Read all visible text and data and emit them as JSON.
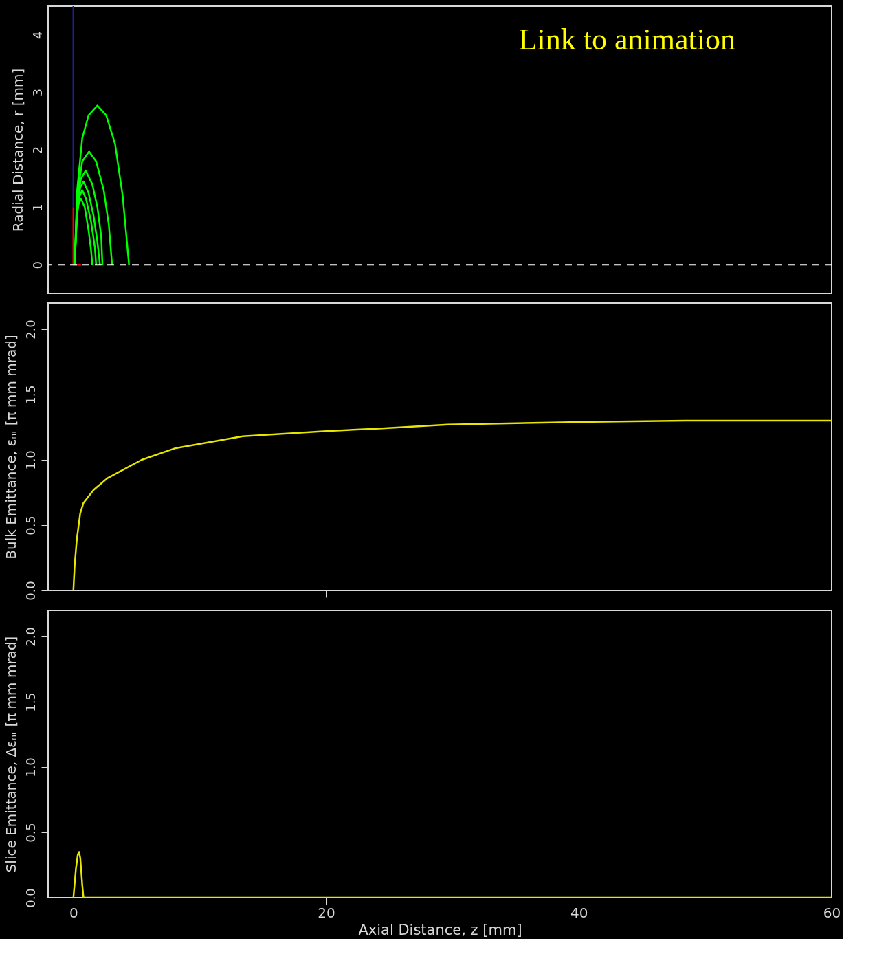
{
  "chart_data": [
    {
      "type": "line",
      "ylabel": "Radial Distance, r [mm]",
      "xlim": [
        -2,
        60
      ],
      "xticks": [
        0,
        20,
        40,
        60
      ],
      "ylim": [
        -0.5,
        4.5
      ],
      "yticks": [
        0,
        1,
        2,
        3,
        4
      ],
      "tick_labels": "y",
      "grid": false,
      "annotations": [
        "Link to animation"
      ],
      "ref_lines": [
        {
          "axis": "y",
          "value": 0,
          "color": "#ffffff",
          "line_style": "dashed"
        }
      ],
      "series": [
        {
          "color": "#202090",
          "x": [
            0,
            0
          ],
          "values": [
            4.5,
            1
          ]
        },
        {
          "color": "#ff0000",
          "x": [
            0,
            0,
            0.6
          ],
          "values": [
            1,
            0,
            0
          ]
        },
        {
          "color": "#00ff00",
          "x": [
            0.1,
            0.3,
            0.7,
            1.2,
            1.9,
            2.6,
            3.3,
            3.9,
            4.4
          ],
          "values": [
            0,
            1.3,
            2.2,
            2.6,
            2.77,
            2.6,
            2.1,
            1.2,
            0
          ]
        },
        {
          "color": "#00ff00",
          "x": [
            0.1,
            0.3,
            0.7,
            1.24,
            1.8,
            2.4,
            2.8,
            3.06
          ],
          "values": [
            0,
            1.2,
            1.8,
            1.97,
            1.8,
            1.3,
            0.7,
            0
          ]
        },
        {
          "color": "#00ff00",
          "x": [
            0.1,
            0.3,
            0.6,
            0.97,
            1.5,
            1.9,
            2.2,
            2.3
          ],
          "values": [
            0,
            1.1,
            1.5,
            1.64,
            1.4,
            1.0,
            0.5,
            0
          ]
        },
        {
          "color": "#00ff00",
          "x": [
            0.1,
            0.3,
            0.55,
            0.81,
            1.2,
            1.6,
            1.9,
            2.1
          ],
          "values": [
            0,
            1.0,
            1.35,
            1.45,
            1.25,
            0.85,
            0.4,
            0
          ]
        },
        {
          "color": "#00ff00",
          "x": [
            0.1,
            0.3,
            0.5,
            0.7,
            1.0,
            1.4,
            1.7,
            1.8
          ],
          "values": [
            0,
            0.9,
            1.2,
            1.3,
            1.15,
            0.75,
            0.3,
            0
          ]
        },
        {
          "color": "#00ff00",
          "x": [
            0.1,
            0.25,
            0.4,
            0.6,
            0.9,
            1.2,
            1.4,
            1.5
          ],
          "values": [
            0,
            0.8,
            1.05,
            1.15,
            1.0,
            0.6,
            0.25,
            0
          ]
        }
      ]
    },
    {
      "type": "line",
      "ylabel": "Bulk Emittance, εₙᵣ [π mm mrad]",
      "xlim": [
        -2,
        60
      ],
      "xticks": [
        0,
        20,
        40,
        60
      ],
      "ylim": [
        0,
        2.2
      ],
      "yticks": [
        {
          "value": 0,
          "label": "0.0"
        },
        {
          "value": 0.5,
          "label": "0.5"
        },
        {
          "value": 1,
          "label": "1.0"
        },
        {
          "value": 1.5,
          "label": "1.5"
        },
        {
          "value": 2,
          "label": "2.0"
        }
      ],
      "tick_labels": "y",
      "grid": false,
      "series": [
        {
          "color": "#e6e600",
          "x": [
            0,
            0.1,
            0.27,
            0.54,
            0.8,
            1.6,
            2.7,
            5.4,
            8.1,
            13.4,
            20,
            24.2,
            29.6,
            40,
            48.4,
            60
          ],
          "values": [
            0,
            0.19,
            0.39,
            0.59,
            0.67,
            0.77,
            0.86,
            1.0,
            1.09,
            1.18,
            1.22,
            1.24,
            1.27,
            1.29,
            1.3,
            1.3
          ]
        }
      ]
    },
    {
      "type": "line",
      "ylabel": "Slice Emittance, Δεₙᵣ [π mm mrad]",
      "xlabel": "Axial Distance, z [mm]",
      "xlim": [
        -2,
        60
      ],
      "xticks": [
        0,
        20,
        40,
        60
      ],
      "ylim": [
        0,
        2.2
      ],
      "yticks": [
        {
          "value": 0,
          "label": "0.0"
        },
        {
          "value": 0.5,
          "label": "0.5"
        },
        {
          "value": 1,
          "label": "1.0"
        },
        {
          "value": 1.5,
          "label": "1.5"
        },
        {
          "value": 2,
          "label": "2.0"
        }
      ],
      "grid": false,
      "series": [
        {
          "color": "#e6e600",
          "x": [
            0,
            0.2,
            0.35,
            0.45,
            0.55,
            0.7,
            0.8,
            10,
            30,
            60
          ],
          "values": [
            0,
            0.22,
            0.33,
            0.35,
            0.3,
            0.1,
            0,
            0,
            0,
            0
          ]
        }
      ]
    }
  ]
}
